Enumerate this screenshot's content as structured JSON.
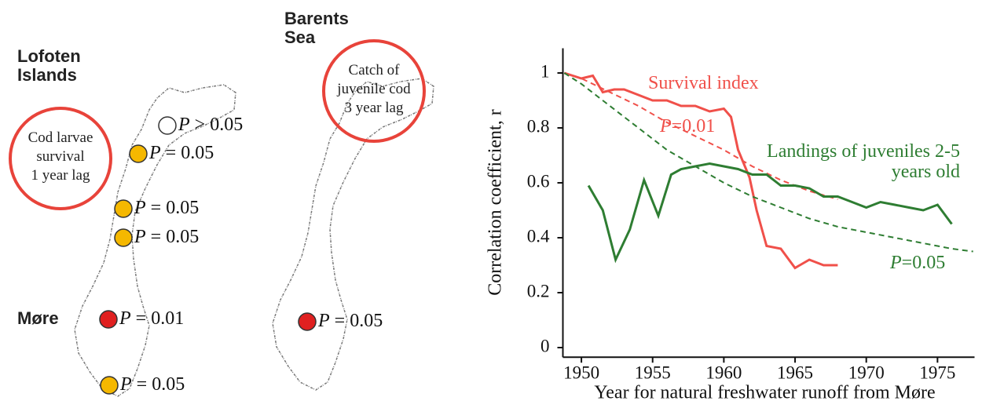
{
  "maps": [
    {
      "region_labels": [
        "Lofoten Islands",
        "Møre"
      ],
      "note": [
        "Cod larvae",
        "survival",
        "1 year lag"
      ],
      "sites": [
        {
          "label": "P > 0.05",
          "color": "#ffffff"
        },
        {
          "label": "P = 0.05",
          "color": "#f5b800"
        },
        {
          "label": "P = 0.05",
          "color": "#f5b800"
        },
        {
          "label": "P = 0.05",
          "color": "#f5b800"
        },
        {
          "label": "P = 0.01",
          "color": "#e02020"
        },
        {
          "label": "P = 0.05",
          "color": "#f5b800"
        }
      ]
    },
    {
      "region_labels": [
        "Barents Sea"
      ],
      "note": [
        "Catch of",
        "juvenile cod",
        "3 year lag"
      ],
      "sites": [
        {
          "label": "P = 0.05",
          "color": "#e02020"
        }
      ]
    }
  ],
  "chart_data": {
    "type": "line",
    "xlabel": "Year for natural freshwater runoff from Møre",
    "ylabel": "Correlation coefficient, r",
    "xlim": [
      1948.7,
      1977.6
    ],
    "ylim": [
      -0.035,
      1.09
    ],
    "xticks": [
      1950,
      1955,
      1960,
      1965,
      1970,
      1975
    ],
    "yticks": [
      0,
      0.2,
      0.4,
      0.6,
      0.8,
      1
    ],
    "series": [
      {
        "name": "Survival index",
        "color": "#f0504a",
        "dashed": false,
        "x": [
          1948.8,
          1950,
          1950.8,
          1951.5,
          1952.3,
          1953,
          1954,
          1955,
          1956,
          1957,
          1958,
          1959,
          1960,
          1960.5,
          1961,
          1961.8,
          1962.3,
          1963,
          1964,
          1965,
          1966,
          1967,
          1968
        ],
        "values": [
          1.0,
          0.98,
          0.99,
          0.93,
          0.94,
          0.94,
          0.92,
          0.9,
          0.9,
          0.88,
          0.88,
          0.86,
          0.87,
          0.84,
          0.72,
          0.62,
          0.5,
          0.37,
          0.36,
          0.29,
          0.32,
          0.3,
          0.3
        ]
      },
      {
        "name": "P=0.01",
        "color": "#f0504a",
        "dashed": true,
        "x": [
          1948.8,
          1950,
          1952,
          1954,
          1956,
          1958,
          1960,
          1962,
          1964,
          1966,
          1968
        ],
        "values": [
          1.0,
          0.98,
          0.93,
          0.88,
          0.82,
          0.77,
          0.72,
          0.66,
          0.61,
          0.57,
          0.54
        ]
      },
      {
        "name": "Landings of juveniles 2-5 years old",
        "color": "#2e7d32",
        "dashed": false,
        "x": [
          1950.5,
          1951.5,
          1952.4,
          1953.4,
          1954.4,
          1955.4,
          1956.3,
          1957,
          1958,
          1959,
          1960,
          1961,
          1962,
          1963,
          1964,
          1965,
          1966,
          1967,
          1968,
          1969,
          1970,
          1971,
          1972,
          1973,
          1974,
          1975,
          1976
        ],
        "values": [
          0.59,
          0.5,
          0.32,
          0.43,
          0.61,
          0.48,
          0.63,
          0.65,
          0.66,
          0.67,
          0.66,
          0.65,
          0.63,
          0.63,
          0.59,
          0.59,
          0.58,
          0.55,
          0.55,
          0.53,
          0.51,
          0.53,
          0.52,
          0.51,
          0.5,
          0.52,
          0.45
        ]
      },
      {
        "name": "P=0.05",
        "color": "#2e7d32",
        "dashed": true,
        "x": [
          1948.8,
          1950,
          1952,
          1954,
          1956,
          1958,
          1960,
          1962,
          1964,
          1966,
          1968,
          1970,
          1972,
          1974,
          1976,
          1977.5
        ],
        "values": [
          1.0,
          0.96,
          0.88,
          0.8,
          0.72,
          0.66,
          0.6,
          0.55,
          0.51,
          0.47,
          0.44,
          0.42,
          0.4,
          0.38,
          0.36,
          0.35
        ]
      }
    ]
  }
}
